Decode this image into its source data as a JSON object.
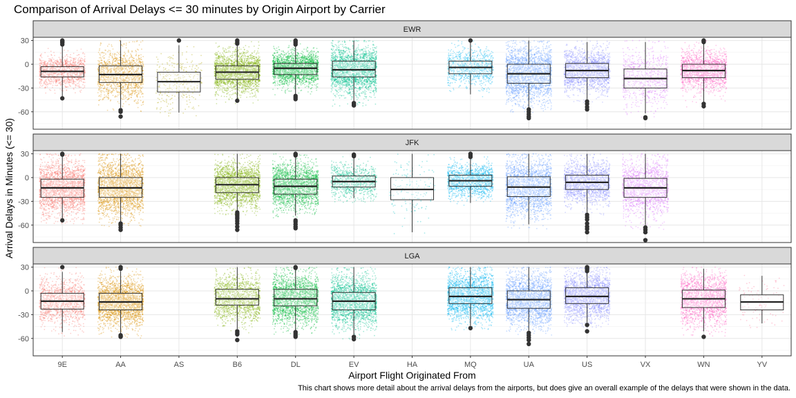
{
  "chart_data": {
    "type": "boxplot-jitter",
    "title": "Comparison of Arrival Delays <= 30 minutes by Origin Airport by Carrier",
    "xlabel": "Airport Flight Originated From",
    "ylabel": "Arrival Delays in Minutes (<= 30)",
    "caption": "This chart shows more detail about the arrival delays from the airports, but does give an overall example of the delays that were shown in the data.",
    "categories": [
      "9E",
      "AA",
      "AS",
      "B6",
      "DL",
      "EV",
      "HA",
      "MQ",
      "UA",
      "US",
      "VX",
      "WN",
      "YV"
    ],
    "yticks": [
      30,
      0,
      -30,
      -60
    ],
    "ylim": [
      -82,
      34
    ],
    "grid": true,
    "legend": "none",
    "carrier_colors": {
      "9E": "#F8766D",
      "AA": "#DB8E00",
      "AS": "#AEA200",
      "B6": "#7CAE00",
      "DL": "#00BA38",
      "EV": "#00C08B",
      "HA": "#00BFC4",
      "MQ": "#00B4F0",
      "UA": "#619CFF",
      "US": "#8B93FF",
      "VX": "#DB72FB",
      "WN": "#FF61C3",
      "YV": "#FF6C91"
    },
    "panels": [
      {
        "name": "EWR",
        "boxes": [
          {
            "carrier": "9E",
            "q1": -16,
            "median": -9,
            "q3": -3,
            "whisker_low": -42,
            "whisker_high": 23,
            "n": 1200,
            "outliers": [
              25,
              27,
              28,
              29,
              30,
              -43
            ]
          },
          {
            "carrier": "AA",
            "q1": -23,
            "median": -13,
            "q3": -2,
            "whisker_low": -55,
            "whisker_high": 30,
            "n": 1400,
            "outliers": [
              -58,
              -60,
              -66
            ]
          },
          {
            "carrier": "AS",
            "q1": -35,
            "median": -22,
            "q3": -10,
            "whisker_low": -61,
            "whisker_high": 24,
            "n": 300,
            "outliers": [
              30
            ]
          },
          {
            "carrier": "B6",
            "q1": -19,
            "median": -10,
            "q3": -2,
            "whisker_low": -44,
            "whisker_high": 25,
            "n": 2500,
            "outliers": [
              26,
              28,
              30,
              -46
            ]
          },
          {
            "carrier": "DL",
            "q1": -13,
            "median": -5,
            "q3": 1,
            "whisker_low": -38,
            "whisker_high": 23,
            "n": 2500,
            "outliers": [
              25,
              27,
              29,
              30,
              -40,
              -42,
              -44
            ]
          },
          {
            "carrier": "EV",
            "q1": -16,
            "median": -7,
            "q3": 4,
            "whisker_low": -47,
            "whisker_high": 30,
            "n": 5000,
            "outliers": [
              -49,
              -51,
              -52
            ]
          },
          {
            "carrier": "MQ",
            "q1": -12,
            "median": -4,
            "q3": 4,
            "whisker_low": -38,
            "whisker_high": 28,
            "n": 900,
            "outliers": [
              30
            ]
          },
          {
            "carrier": "UA",
            "q1": -24,
            "median": -12,
            "q3": 0,
            "whisker_low": -55,
            "whisker_high": 30,
            "n": 5000,
            "outliers": [
              -57,
              -60,
              -63,
              -66,
              -68
            ]
          },
          {
            "carrier": "US",
            "q1": -17,
            "median": -8,
            "q3": 1,
            "whisker_low": -44,
            "whisker_high": 28,
            "n": 1800,
            "outliers": [
              -47,
              -50,
              -54,
              -57
            ]
          },
          {
            "carrier": "VX",
            "q1": -30,
            "median": -18,
            "q3": -6,
            "whisker_low": -62,
            "whisker_high": 28,
            "n": 800,
            "outliers": [
              -67,
              -68
            ]
          },
          {
            "carrier": "WN",
            "q1": -17,
            "median": -8,
            "q3": 0,
            "whisker_low": -48,
            "whisker_high": 27,
            "n": 1700,
            "outliers": [
              28,
              29,
              30,
              -50,
              -53
            ]
          }
        ]
      },
      {
        "name": "JFK",
        "boxes": [
          {
            "carrier": "9E",
            "q1": -25,
            "median": -13,
            "q3": -2,
            "whisker_low": -53,
            "whisker_high": 27,
            "n": 2200,
            "outliers": [
              29,
              30,
              -54
            ]
          },
          {
            "carrier": "AA",
            "q1": -25,
            "median": -13,
            "q3": 0,
            "whisker_low": -56,
            "whisker_high": 30,
            "n": 3500,
            "outliers": [
              -58,
              -60,
              -63,
              -66
            ]
          },
          {
            "carrier": "B6",
            "q1": -19,
            "median": -9,
            "q3": 0,
            "whisker_low": -42,
            "whisker_high": 30,
            "n": 6000,
            "outliers": [
              -44,
              -46,
              -48,
              -50,
              -52,
              -55,
              -58,
              -62,
              -66
            ]
          },
          {
            "carrier": "DL",
            "q1": -21,
            "median": -11,
            "q3": -2,
            "whisker_low": -48,
            "whisker_high": 26,
            "n": 5000,
            "outliers": [
              28,
              29,
              30,
              -54,
              -56,
              -59,
              -62,
              -64
            ]
          },
          {
            "carrier": "EV",
            "q1": -12,
            "median": -5,
            "q3": 2,
            "whisker_low": -26,
            "whisker_high": 25,
            "n": 900,
            "outliers": [
              27,
              28,
              29
            ]
          },
          {
            "carrier": "HA",
            "q1": -28,
            "median": -15,
            "q3": 0,
            "whisker_low": -69,
            "whisker_high": 30,
            "n": 150,
            "outliers": []
          },
          {
            "carrier": "MQ",
            "q1": -11,
            "median": -4,
            "q3": 3,
            "whisker_low": -32,
            "whisker_high": 25,
            "n": 1400,
            "outliers": [
              26,
              28,
              30
            ]
          },
          {
            "carrier": "UA",
            "q1": -24,
            "median": -12,
            "q3": 1,
            "whisker_low": -59,
            "whisker_high": 30,
            "n": 2000,
            "outliers": []
          },
          {
            "carrier": "US",
            "q1": -15,
            "median": -6,
            "q3": 3,
            "whisker_low": -44,
            "whisker_high": 30,
            "n": 1800,
            "outliers": [
              -47,
              -50,
              -53,
              -58,
              -62,
              -65,
              -69
            ]
          },
          {
            "carrier": "VX",
            "q1": -25,
            "median": -13,
            "q3": -1,
            "whisker_low": -60,
            "whisker_high": 30,
            "n": 1500,
            "outliers": [
              -63,
              -66,
              -69,
              -79
            ]
          }
        ]
      },
      {
        "name": "LGA",
        "boxes": [
          {
            "carrier": "9E",
            "q1": -23,
            "median": -13,
            "q3": -3,
            "whisker_low": -52,
            "whisker_high": 24,
            "n": 1300,
            "outliers": [
              30
            ]
          },
          {
            "carrier": "AA",
            "q1": -24,
            "median": -14,
            "q3": -3,
            "whisker_low": -54,
            "whisker_high": 25,
            "n": 5000,
            "outliers": [
              28,
              30,
              -56,
              -57,
              -58
            ]
          },
          {
            "carrier": "B6",
            "q1": -18,
            "median": -10,
            "q3": 2,
            "whisker_low": -48,
            "whisker_high": 30,
            "n": 1500,
            "outliers": [
              -51,
              -53,
              -55,
              -62
            ]
          },
          {
            "carrier": "DL",
            "q1": -19,
            "median": -10,
            "q3": 2,
            "whisker_low": -50,
            "whisker_high": 28,
            "n": 6000,
            "outliers": [
              29,
              30,
              -52,
              -54,
              -56,
              -58
            ]
          },
          {
            "carrier": "EV",
            "q1": -24,
            "median": -13,
            "q3": -2,
            "whisker_low": -55,
            "whisker_high": 30,
            "n": 2500,
            "outliers": [
              -58,
              -61
            ]
          },
          {
            "carrier": "MQ",
            "q1": -16,
            "median": -7,
            "q3": 4,
            "whisker_low": -44,
            "whisker_high": 30,
            "n": 4000,
            "outliers": [
              -47
            ]
          },
          {
            "carrier": "UA",
            "q1": -22,
            "median": -11,
            "q3": 0,
            "whisker_low": -50,
            "whisker_high": 30,
            "n": 3000,
            "outliers": [
              -53,
              -56,
              -59,
              -62,
              -67
            ]
          },
          {
            "carrier": "US",
            "q1": -16,
            "median": -7,
            "q3": 4,
            "whisker_low": -40,
            "whisker_high": 24,
            "n": 3500,
            "outliers": [
              25,
              27,
              29,
              30,
              -43,
              -51
            ]
          },
          {
            "carrier": "WN",
            "q1": -21,
            "median": -10,
            "q3": 1,
            "whisker_low": -51,
            "whisker_high": 28,
            "n": 1800,
            "outliers": [
              -58
            ]
          },
          {
            "carrier": "YV",
            "q1": -24,
            "median": -14,
            "q3": -5,
            "whisker_low": -41,
            "whisker_high": 19,
            "n": 100,
            "outliers": []
          }
        ]
      }
    ]
  }
}
